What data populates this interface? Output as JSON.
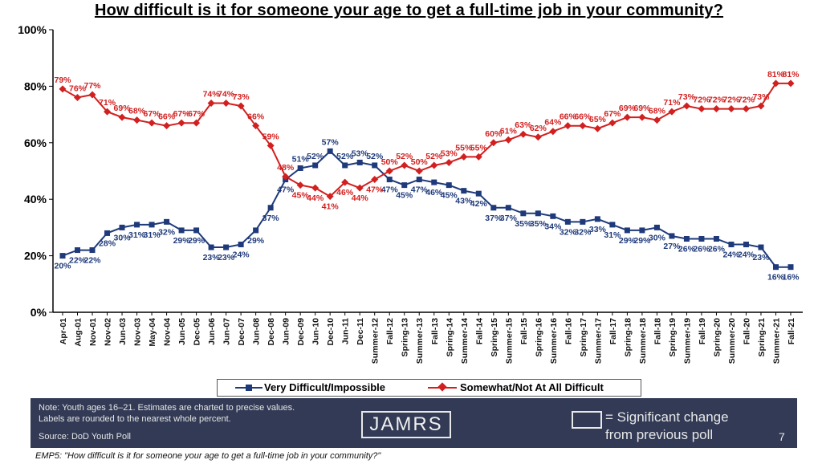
{
  "chart_data": {
    "type": "line",
    "title": "How difficult is it for someone your age to get a full-time job in your community?",
    "categories": [
      "Apr-01",
      "Aug-01",
      "Nov-01",
      "Nov-02",
      "Jun-03",
      "Nov-03",
      "May-04",
      "Nov-04",
      "Jun-05",
      "Dec-05",
      "Jun-06",
      "Jun-07",
      "Dec-07",
      "Jun-08",
      "Dec-08",
      "Jun-09",
      "Dec-09",
      "Jun-10",
      "Dec-10",
      "Jun-11",
      "Dec-11",
      "Summer-12",
      "Fall-12",
      "Spring-13",
      "Summer-13",
      "Fall-13",
      "Spring-14",
      "Summer-14",
      "Fall-14",
      "Spring-15",
      "Summer-15",
      "Fall-15",
      "Spring-16",
      "Summer-16",
      "Fall-16",
      "Spring-17",
      "Summer-17",
      "Fall-17",
      "Spring-18",
      "Summer-18",
      "Fall-18",
      "Spring-19",
      "Summer-19",
      "Fall-19",
      "Spring-20",
      "Summer-20",
      "Fall-20",
      "Spring-21",
      "Summer-21",
      "Fall-21"
    ],
    "ylim": [
      0,
      100
    ],
    "yticks": [
      "0%",
      "20%",
      "40%",
      "60%",
      "80%",
      "100%"
    ],
    "series": [
      {
        "name": "Very Difficult/Impossible",
        "color": "#1f3a7a",
        "marker": "square",
        "values": [
          20,
          22,
          22,
          28,
          30,
          31,
          31,
          32,
          29,
          29,
          23,
          23,
          24,
          29,
          37,
          47,
          51,
          52,
          57,
          52,
          53,
          52,
          47,
          45,
          47,
          46,
          45,
          43,
          42,
          37,
          37,
          35,
          35,
          34,
          32,
          32,
          33,
          31,
          29,
          29,
          30,
          27,
          26,
          26,
          26,
          24,
          24,
          23,
          16,
          16
        ],
        "labels": [
          "20%",
          "22%",
          "22%",
          "28%",
          "30%",
          "31%",
          "31%",
          "32%",
          "29%",
          "29%",
          "23%",
          "23%",
          "24%",
          "29%",
          "37%",
          "47%",
          "51%",
          "52%",
          "57%",
          "52%",
          "53%",
          "52%",
          "47%",
          "45%",
          "47%",
          "46%",
          "45%",
          "43%",
          "42%",
          "37%",
          "37%",
          "35%",
          "35%",
          "34%",
          "32%",
          "32%",
          "33%",
          "31%",
          "29%",
          "29%",
          "30%",
          "27%",
          "26%",
          "26%",
          "26%",
          "24%",
          "24%",
          "23%",
          "16%",
          "16%"
        ]
      },
      {
        "name": "Somewhat/Not At All Difficult",
        "color": "#d21f1f",
        "marker": "diamond",
        "values": [
          79,
          76,
          77,
          71,
          69,
          68,
          67,
          66,
          67,
          67,
          74,
          74,
          73,
          66,
          59,
          48,
          45,
          44,
          41,
          46,
          44,
          47,
          50,
          52,
          50,
          52,
          53,
          55,
          55,
          60,
          61,
          63,
          62,
          64,
          66,
          66,
          65,
          67,
          69,
          69,
          68,
          71,
          73,
          72,
          72,
          72,
          72,
          73,
          81,
          81
        ],
        "labels": [
          "79%",
          "76%",
          "77%",
          "71%",
          "69%",
          "68%",
          "67%",
          "66%",
          "67%",
          "67%",
          "74%",
          "74%",
          "73%",
          "66%",
          "59%",
          "48%",
          "45%",
          "44%",
          "41%",
          "46%",
          "44%",
          "47%",
          "50%",
          "52%",
          "50%",
          "52%",
          "53%",
          "55%",
          "55%",
          "60%",
          "61%",
          "63%",
          "62%",
          "64%",
          "66%",
          "66%",
          "65%",
          "67%",
          "69%",
          "69%",
          "68%",
          "71%",
          "73%",
          "72%",
          "72%",
          "72%",
          "72%",
          "73%",
          "81%",
          "81%"
        ]
      }
    ]
  },
  "legend": {
    "series1": "Very Difficult/Impossible",
    "series2": "Somewhat/Not At All Difficult"
  },
  "footer": {
    "note_line1": "Note:  Youth ages 16–21.  Estimates are charted to precise values.",
    "note_line2": "Labels are rounded to the nearest whole percent.",
    "source": "Source:  DoD Youth Poll",
    "logo": "JAMRS",
    "key_line1": "= Significant change",
    "key_line2": "from previous poll",
    "page_number": "7"
  },
  "question": "EMP5:  \"How difficult is it for someone your age to get a full-time job in your community?\"",
  "colors": {
    "footer_bg": "#323a55",
    "series1": "#1f3a7a",
    "series2": "#d21f1f"
  }
}
